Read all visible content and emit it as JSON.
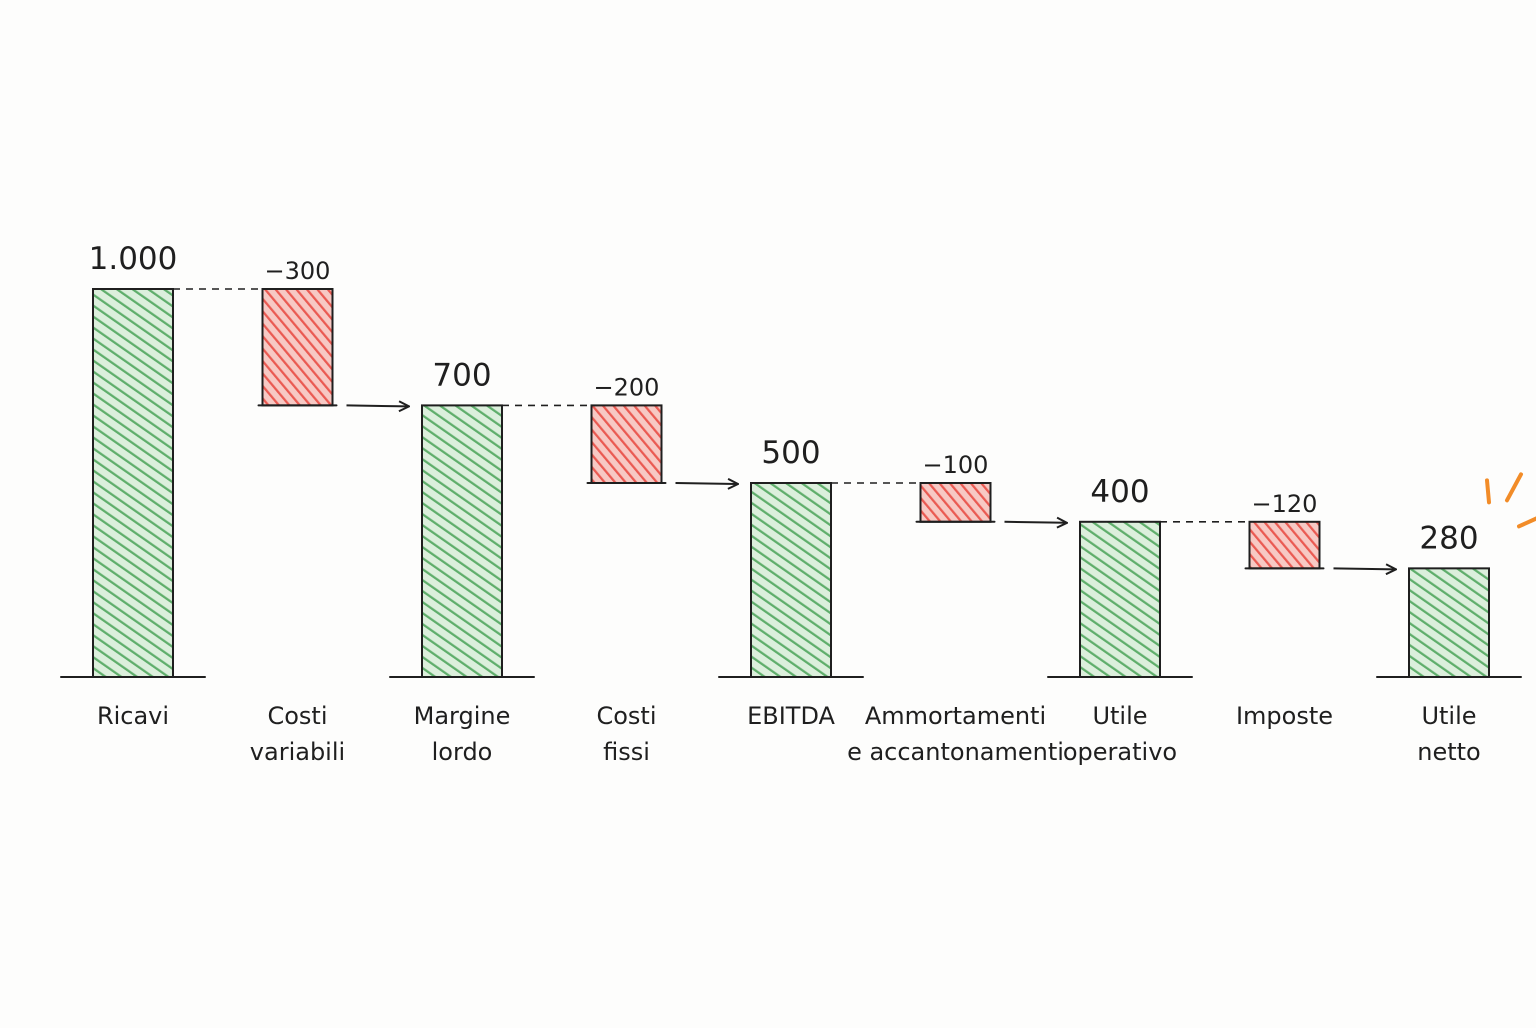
{
  "chart_data": {
    "type": "waterfall",
    "categories": [
      [
        "Ricavi"
      ],
      [
        "Costi",
        "variabili"
      ],
      [
        "Margine",
        "lordo"
      ],
      [
        "Costi",
        "fissi"
      ],
      [
        "EBITDA"
      ],
      [
        "Ammortamenti",
        "e accantonamenti"
      ],
      [
        "Utile",
        "operativo"
      ],
      [
        "Imposte"
      ],
      [
        "Utile",
        "netto"
      ]
    ],
    "values": [
      1000,
      -300,
      700,
      -200,
      500,
      -100,
      400,
      -120,
      280
    ],
    "kinds": [
      "total",
      "delta",
      "total",
      "delta",
      "total",
      "delta",
      "total",
      "delta",
      "total"
    ],
    "labels": [
      "1.000",
      "−300",
      "700",
      "−200",
      "500",
      "−100",
      "400",
      "−120",
      "280"
    ],
    "ylim": [
      0,
      1000
    ],
    "colors": {
      "total": "#5fae6b",
      "delta": "#ea5a52",
      "outline": "#1f1f1f",
      "accent": "#f28c28"
    },
    "grid": false,
    "legend": "none"
  }
}
